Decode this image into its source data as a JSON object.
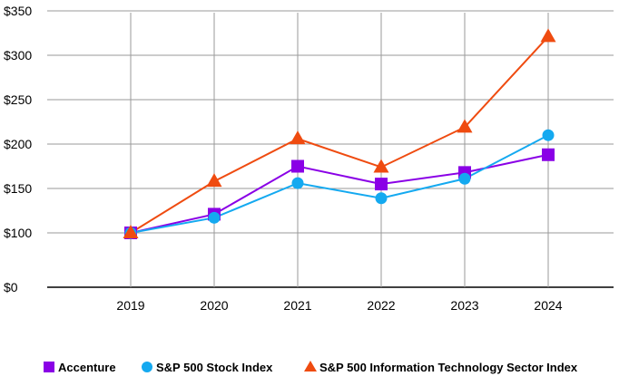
{
  "chart_data": {
    "type": "line",
    "title": "",
    "xlabel": "",
    "ylabel": "",
    "x": [
      "2019",
      "2020",
      "2021",
      "2022",
      "2023",
      "2024"
    ],
    "y_ticks": [
      "$0",
      "$100",
      "$150",
      "$200",
      "$250",
      "$300",
      "$350"
    ],
    "y_tick_values": [
      0,
      100,
      150,
      200,
      250,
      300,
      350
    ],
    "ylim": [
      0,
      350
    ],
    "grid": true,
    "legend_position": "bottom",
    "series": [
      {
        "name": "Accenture",
        "marker": "square",
        "color": "#8a00e6",
        "values": [
          100,
          121,
          175,
          155,
          168,
          188
        ]
      },
      {
        "name": "S&P 500 Stock Index",
        "marker": "circle",
        "color": "#14a9f0",
        "values": [
          100,
          117,
          156,
          139,
          161,
          210
        ]
      },
      {
        "name": "S&P 500 Information Technology Sector Index",
        "marker": "triangle",
        "color": "#ef4b10",
        "values": [
          100,
          158,
          206,
          174,
          219,
          321
        ]
      }
    ]
  }
}
